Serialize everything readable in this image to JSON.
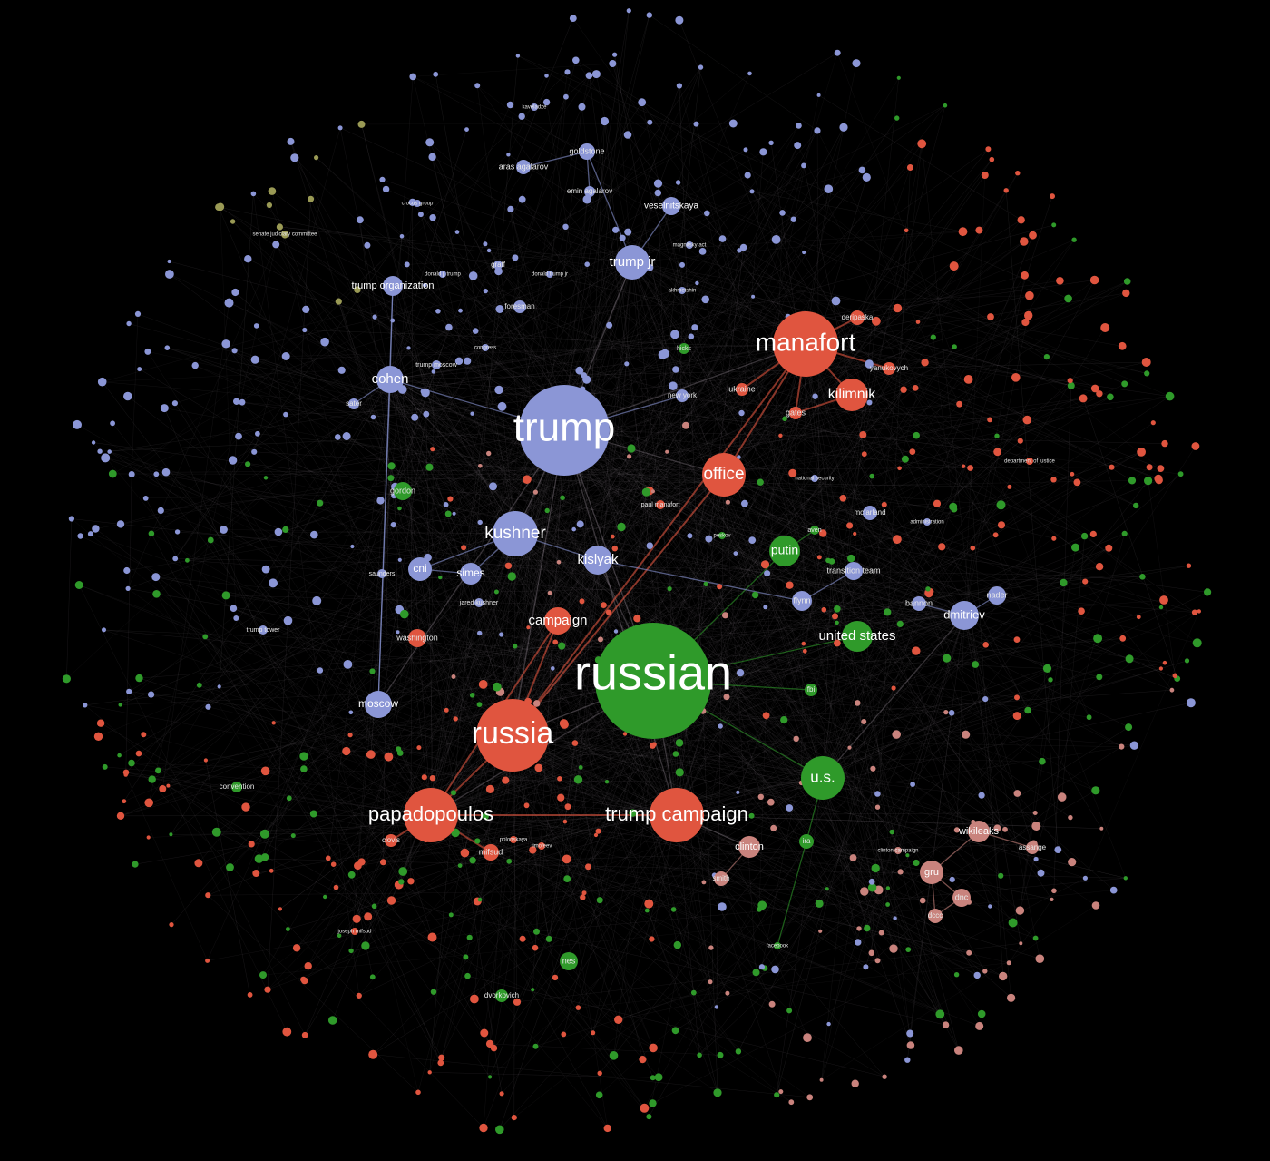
{
  "graph": {
    "palette": {
      "background": "#000000",
      "blue": "#8b96d6",
      "red": "#e0553f",
      "green": "#2f9a2a",
      "pink": "#c9837d",
      "olive": "#9a9a55",
      "edge": "#9a8f9a"
    },
    "nodes": [
      {
        "id": "trump",
        "label": "trump",
        "group": "blue"
      },
      {
        "id": "russian",
        "label": "russian",
        "group": "green"
      },
      {
        "id": "russia",
        "label": "russia",
        "group": "red"
      },
      {
        "id": "manafort",
        "label": "manafort",
        "group": "red"
      },
      {
        "id": "papadopoulos",
        "label": "papadopoulos",
        "group": "red"
      },
      {
        "id": "trump_campaign",
        "label": "trump campaign",
        "group": "red"
      },
      {
        "id": "kushner",
        "label": "kushner",
        "group": "blue"
      },
      {
        "id": "office",
        "label": "office",
        "group": "red"
      },
      {
        "id": "kilimnik",
        "label": "kilimnik",
        "group": "red"
      },
      {
        "id": "trump_jr",
        "label": "trump jr",
        "group": "blue"
      },
      {
        "id": "us",
        "label": "u.s.",
        "group": "green"
      },
      {
        "id": "united_states",
        "label": "united states",
        "group": "green"
      },
      {
        "id": "putin",
        "label": "putin",
        "group": "green"
      },
      {
        "id": "cohen",
        "label": "cohen",
        "group": "blue"
      },
      {
        "id": "kislyak",
        "label": "kislyak",
        "group": "blue"
      },
      {
        "id": "campaign",
        "label": "campaign",
        "group": "red"
      },
      {
        "id": "moscow",
        "label": "moscow",
        "group": "blue"
      },
      {
        "id": "dmitriev",
        "label": "dmitriev",
        "group": "blue"
      },
      {
        "id": "wikileaks",
        "label": "wikileaks",
        "group": "pink"
      },
      {
        "id": "gru",
        "label": "gru",
        "group": "pink"
      },
      {
        "id": "clinton",
        "label": "clinton",
        "group": "pink"
      },
      {
        "id": "cni",
        "label": "cni",
        "group": "blue"
      },
      {
        "id": "simes",
        "label": "simes",
        "group": "blue"
      },
      {
        "id": "trump_organization",
        "label": "trump organization",
        "group": "blue"
      },
      {
        "id": "veselnitskaya",
        "label": "veselnitskaya",
        "group": "blue"
      },
      {
        "id": "goldstone",
        "label": "goldstone",
        "group": "blue"
      },
      {
        "id": "aras_agalarov",
        "label": "aras agalarov",
        "group": "blue"
      },
      {
        "id": "emin_agalarov",
        "label": "emin agalarov",
        "group": "blue"
      },
      {
        "id": "ukraine",
        "label": "ukraine",
        "group": "red"
      },
      {
        "id": "gates",
        "label": "gates",
        "group": "red"
      },
      {
        "id": "deripaska",
        "label": "deripaska",
        "group": "red"
      },
      {
        "id": "yanukovych",
        "label": "yanukovych",
        "group": "red"
      },
      {
        "id": "new_york",
        "label": "new york",
        "group": "blue"
      },
      {
        "id": "gordon",
        "label": "gordon",
        "group": "green"
      },
      {
        "id": "flynn",
        "label": "flynn",
        "group": "blue"
      },
      {
        "id": "transition_team",
        "label": "transition team",
        "group": "blue"
      },
      {
        "id": "bannon",
        "label": "bannon",
        "group": "blue"
      },
      {
        "id": "nader",
        "label": "nader",
        "group": "blue"
      },
      {
        "id": "mcfarland",
        "label": "mcfarland",
        "group": "blue"
      },
      {
        "id": "washington",
        "label": "washington",
        "group": "red"
      },
      {
        "id": "fbi",
        "label": "fbi",
        "group": "green"
      },
      {
        "id": "ira",
        "label": "ira",
        "group": "green"
      },
      {
        "id": "dnc",
        "label": "dnc",
        "group": "pink"
      },
      {
        "id": "dccc",
        "label": "dccc",
        "group": "pink"
      },
      {
        "id": "assange",
        "label": "assange",
        "group": "pink"
      },
      {
        "id": "smith",
        "label": "smith",
        "group": "pink"
      },
      {
        "id": "mifsud",
        "label": "mifsud",
        "group": "red"
      },
      {
        "id": "clovis",
        "label": "clovis",
        "group": "red"
      },
      {
        "id": "nes",
        "label": "nes",
        "group": "green"
      },
      {
        "id": "dvorkovich",
        "label": "dvorkovich",
        "group": "green"
      },
      {
        "id": "convention",
        "label": "convention",
        "group": "green"
      },
      {
        "id": "hicks",
        "label": "hicks",
        "group": "green"
      },
      {
        "id": "sater",
        "label": "sater",
        "group": "blue"
      },
      {
        "id": "foresman",
        "label": "foresman",
        "group": "blue"
      },
      {
        "id": "graff",
        "label": "graff",
        "group": "blue"
      },
      {
        "id": "trump_moscow",
        "label": "trump moscow",
        "group": "blue"
      },
      {
        "id": "jared_kushner",
        "label": "jared kushner",
        "group": "blue"
      },
      {
        "id": "saunders",
        "label": "saunders",
        "group": "blue"
      },
      {
        "id": "paul_manafort",
        "label": "paul manafort",
        "group": "red"
      },
      {
        "id": "trump_tower",
        "label": "trump tower",
        "group": "blue"
      },
      {
        "id": "aven",
        "label": "aven",
        "group": "green"
      },
      {
        "id": "senate_judiciary_committee",
        "label": "senate judiciary committee",
        "group": "olive"
      },
      {
        "id": "kaveladze",
        "label": "kaveladze",
        "group": "blue"
      },
      {
        "id": "magnitsky_act",
        "label": "magnitsky act",
        "group": "blue"
      },
      {
        "id": "facebook",
        "label": "facebook",
        "group": "green"
      },
      {
        "id": "joseph_mifsud",
        "label": "joseph mifsud",
        "group": "red"
      },
      {
        "id": "clinton_campaign",
        "label": "clinton campaign",
        "group": "pink"
      },
      {
        "id": "administration",
        "label": "administration",
        "group": "blue"
      },
      {
        "id": "department_of_justice",
        "label": "department of justice",
        "group": "red"
      },
      {
        "id": "polonskaya",
        "label": "polonskaya",
        "group": "red"
      },
      {
        "id": "timofeev",
        "label": "timofeev",
        "group": "red"
      },
      {
        "id": "akhmetshin",
        "label": "akhmetshin",
        "group": "blue"
      },
      {
        "id": "crocus_group",
        "label": "crocus group",
        "group": "blue"
      },
      {
        "id": "peskov",
        "label": "peskov",
        "group": "green"
      },
      {
        "id": "national_security",
        "label": "national security",
        "group": "blue"
      },
      {
        "id": "congress",
        "label": "congress",
        "group": "blue"
      },
      {
        "id": "donald_j_trump",
        "label": "donald j. trump",
        "group": "blue"
      },
      {
        "id": "donald_trump_jr",
        "label": "donald trump jr",
        "group": "blue"
      }
    ]
  }
}
